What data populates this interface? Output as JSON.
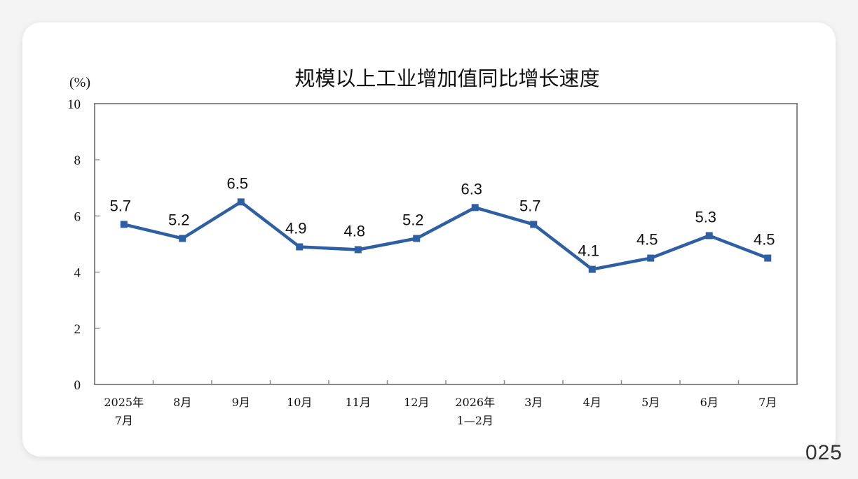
{
  "chart_data": {
    "type": "line",
    "title": "规模以上工业增加值同比增长速度",
    "ylabel": "(%)",
    "xlabel": "",
    "ylim": [
      0,
      10
    ],
    "yticks": [
      0,
      2,
      4,
      6,
      8,
      10
    ],
    "grid": false,
    "categories": [
      [
        "2025年",
        "7月"
      ],
      [
        "8月"
      ],
      [
        "9月"
      ],
      [
        "10月"
      ],
      [
        "11月"
      ],
      [
        "12月"
      ],
      [
        "2026年",
        "1—2月"
      ],
      [
        "3月"
      ],
      [
        "4月"
      ],
      [
        "5月"
      ],
      [
        "6月"
      ],
      [
        "7月"
      ]
    ],
    "series": [
      {
        "values": [
          5.7,
          5.2,
          6.5,
          4.9,
          4.8,
          5.2,
          6.3,
          5.7,
          4.1,
          4.5,
          5.3,
          4.5
        ],
        "labels": [
          "5.7",
          "5.2",
          "6.5",
          "4.9",
          "4.8",
          "5.2",
          "6.3",
          "5.7",
          "4.1",
          "4.5",
          "5.3",
          "4.5"
        ],
        "color": "#2e5fa3"
      }
    ]
  },
  "watermark": {
    "text": "025"
  }
}
